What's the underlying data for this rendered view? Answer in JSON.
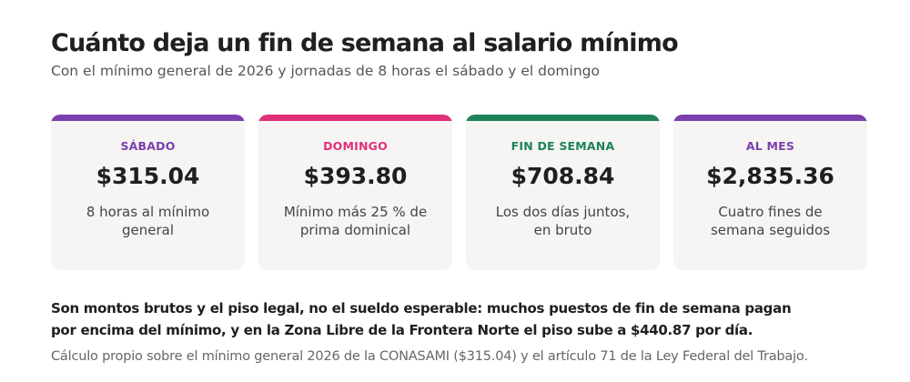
{
  "header": {
    "title": "Cuánto deja un fin de semana al salario mínimo",
    "subtitle": "Con el mínimo general de 2026 y jornadas de 8 horas el sábado y el domingo"
  },
  "cards": [
    {
      "label": "SÁBADO",
      "value": "$315.04",
      "description": "8 horas al mínimo general",
      "accent": "#7b3fae"
    },
    {
      "label": "DOMINGO",
      "value": "$393.80",
      "description": "Mínimo más 25 % de prima dominical",
      "accent": "#e0307a"
    },
    {
      "label": "FIN DE SEMANA",
      "value": "$708.84",
      "description": "Los dos días juntos, en bruto",
      "accent": "#1e8259"
    },
    {
      "label": "AL MES",
      "value": "$2,835.36",
      "description": "Cuatro fines de semana seguidos",
      "accent": "#7b3fae"
    }
  ],
  "note": "Son montos brutos y el piso legal, no el sueldo esperable: muchos puestos de fin de semana pagan por encima del mínimo, y en la Zona Libre de la Frontera Norte el piso sube a $440.87 por día.",
  "source": "Cálculo propio sobre el mínimo general 2026 de la CONASAMI ($315.04) y el artículo 71 de la Ley Federal del Trabajo."
}
